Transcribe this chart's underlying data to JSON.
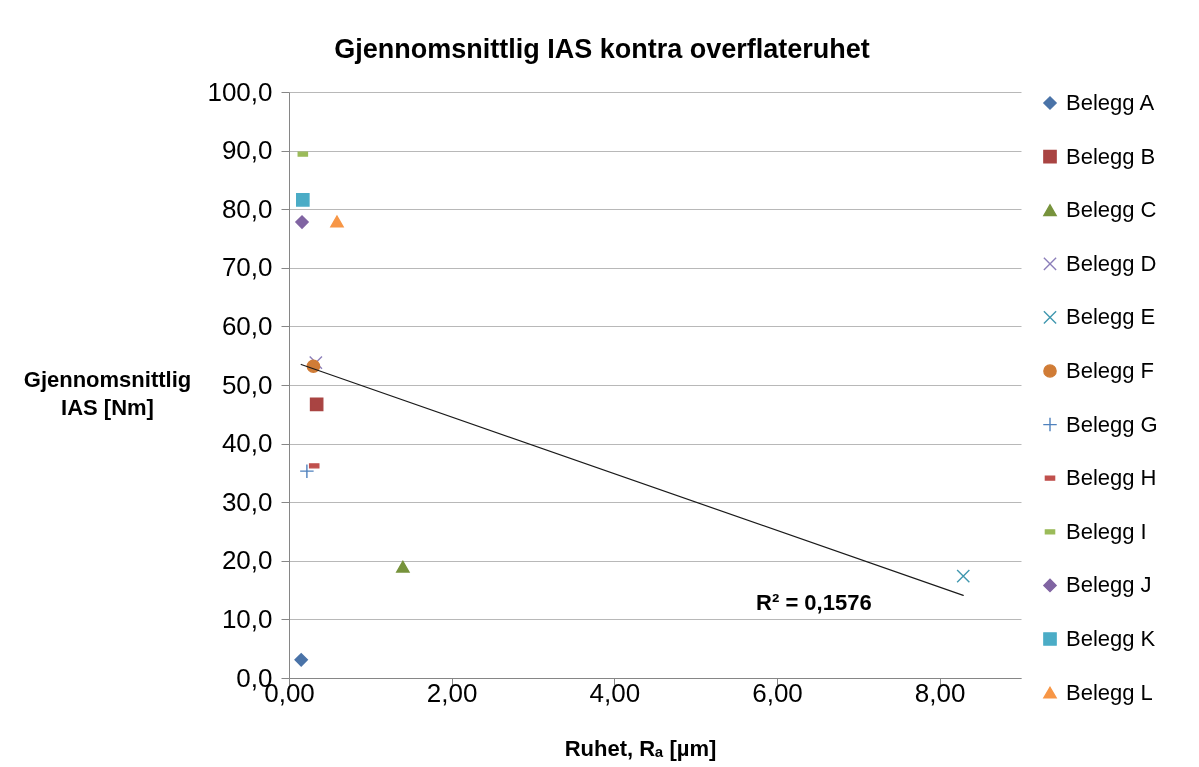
{
  "chart_data": {
    "type": "scatter",
    "title": "Gjennomsnittlig IAS kontra overflateruhet",
    "xlabel": "Ruhet, Rₐ [µm]",
    "ylabel": "Gjennomsnittlig IAS [Nm]",
    "xlim": [
      0,
      9
    ],
    "xticks": [
      {
        "value": 0,
        "label": "0,00"
      },
      {
        "value": 2,
        "label": "2,00"
      },
      {
        "value": 4,
        "label": "4,00"
      },
      {
        "value": 6,
        "label": "6,00"
      },
      {
        "value": 8,
        "label": "8,00"
      }
    ],
    "ylim": [
      0,
      100
    ],
    "yticks": [
      {
        "value": 0,
        "label": "0,0"
      },
      {
        "value": 10,
        "label": "10,0"
      },
      {
        "value": 20,
        "label": "20,0"
      },
      {
        "value": 30,
        "label": "30,0"
      },
      {
        "value": 40,
        "label": "40,0"
      },
      {
        "value": 50,
        "label": "50,0"
      },
      {
        "value": 60,
        "label": "60,0"
      },
      {
        "value": 70,
        "label": "70,0"
      },
      {
        "value": 80,
        "label": "80,0"
      },
      {
        "value": 90,
        "label": "90,0"
      },
      {
        "value": 100,
        "label": "100,0"
      }
    ],
    "grid": "y",
    "legend": "right",
    "series": [
      {
        "name": "Belegg A",
        "color": "#4a73a8",
        "marker": "diamond",
        "x": [
          0.15
        ],
        "values": [
          3.1
        ]
      },
      {
        "name": "Belegg B",
        "color": "#a94442",
        "marker": "square",
        "x": [
          0.34
        ],
        "values": [
          46.7
        ]
      },
      {
        "name": "Belegg C",
        "color": "#77933c",
        "marker": "triangle",
        "x": [
          1.4
        ],
        "values": [
          19.0
        ]
      },
      {
        "name": "Belegg D",
        "color": "#8c7fba",
        "marker": "cross",
        "x": [
          0.33
        ],
        "values": [
          53.8
        ]
      },
      {
        "name": "Belegg E",
        "color": "#4198af",
        "marker": "cross",
        "x": [
          8.29
        ],
        "values": [
          17.4
        ]
      },
      {
        "name": "Belegg F",
        "color": "#d07c36",
        "marker": "circle",
        "x": [
          0.3
        ],
        "values": [
          53.2
        ]
      },
      {
        "name": "Belegg G",
        "color": "#4f81bd",
        "marker": "plus",
        "x": [
          0.22
        ],
        "values": [
          35.3
        ]
      },
      {
        "name": "Belegg H",
        "color": "#c0504d",
        "x": [
          0.31
        ],
        "values": [
          36.2
        ]
      },
      {
        "name": "Belegg I",
        "color": "#9bbb59",
        "x": [
          0.17
        ],
        "values": [
          89.4
        ]
      },
      {
        "name": "Belegg J",
        "color": "#8064a2",
        "marker": "diamond",
        "x": [
          0.16
        ],
        "values": [
          77.8
        ]
      },
      {
        "name": "Belegg K",
        "color": "#4bacc6",
        "marker": "square",
        "x": [
          0.17
        ],
        "values": [
          81.6
        ]
      },
      {
        "name": "Belegg L",
        "color": "#f79646",
        "marker": "triangle",
        "x": [
          0.59
        ],
        "values": [
          77.9
        ]
      },
      {
        "type": "line",
        "color": "#1a1a1a",
        "marker": "none",
        "line_style": "solid",
        "x": [
          0.15,
          8.29
        ],
        "values": [
          53.5,
          14.1
        ]
      }
    ],
    "annotations": [
      "R² = 0,1576"
    ]
  }
}
